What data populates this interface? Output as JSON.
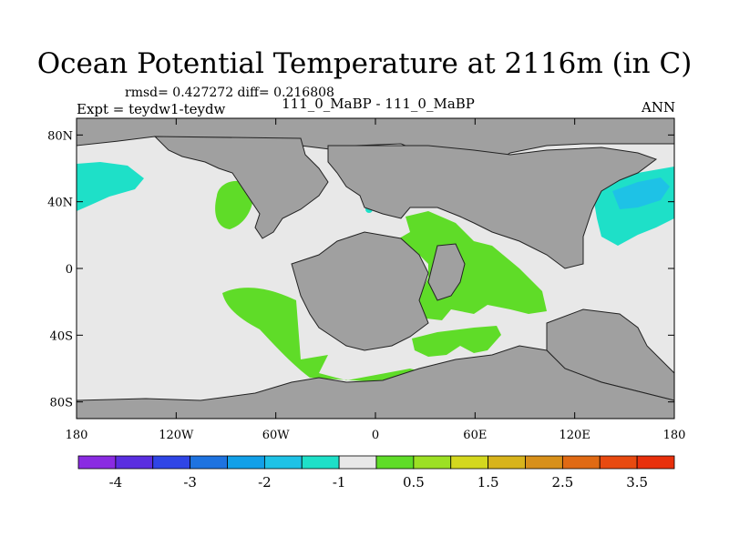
{
  "figure": {
    "title": "Ocean Potential Temperature at 2116m (in C)",
    "stats": "rmsd= 0.427272  diff= 0.216808",
    "expt": "Expt = teydw1-teydw",
    "center_label": "111_0_MaBP - 111_0_MaBP",
    "season": "ANN"
  },
  "chart_data": {
    "type": "heatmap",
    "title": "Ocean Potential Temperature at 2116m (in C)",
    "x_ticks": [
      "180",
      "120W",
      "60W",
      "0",
      "60E",
      "120E",
      "180"
    ],
    "y_ticks": [
      "80N",
      "40N",
      "0",
      "40S",
      "80S"
    ],
    "xlim": [
      -180,
      180
    ],
    "ylim": [
      -90,
      90
    ],
    "colorbar": {
      "levels": [
        "-4",
        "-3",
        "-2",
        "-1",
        "0.5",
        "1.5",
        "2.5",
        "3.5"
      ],
      "colors": [
        "#8a2be2",
        "#5a2ee0",
        "#2f45e6",
        "#1e73e0",
        "#12a0e8",
        "#1ec2e6",
        "#1ee0c8",
        "#e8e8e8",
        "#5fdc28",
        "#9ce024",
        "#d4d81e",
        "#d8b41c",
        "#d8901a",
        "#e06a14",
        "#e84a10",
        "#e8300c"
      ]
    },
    "colors": {
      "land": "#a0a0a0",
      "no_change": "#e8e8e8",
      "warm_small": "#5fdc28",
      "cool_small": "#1ee0c8",
      "cool_mid": "#1ec2e6"
    }
  }
}
